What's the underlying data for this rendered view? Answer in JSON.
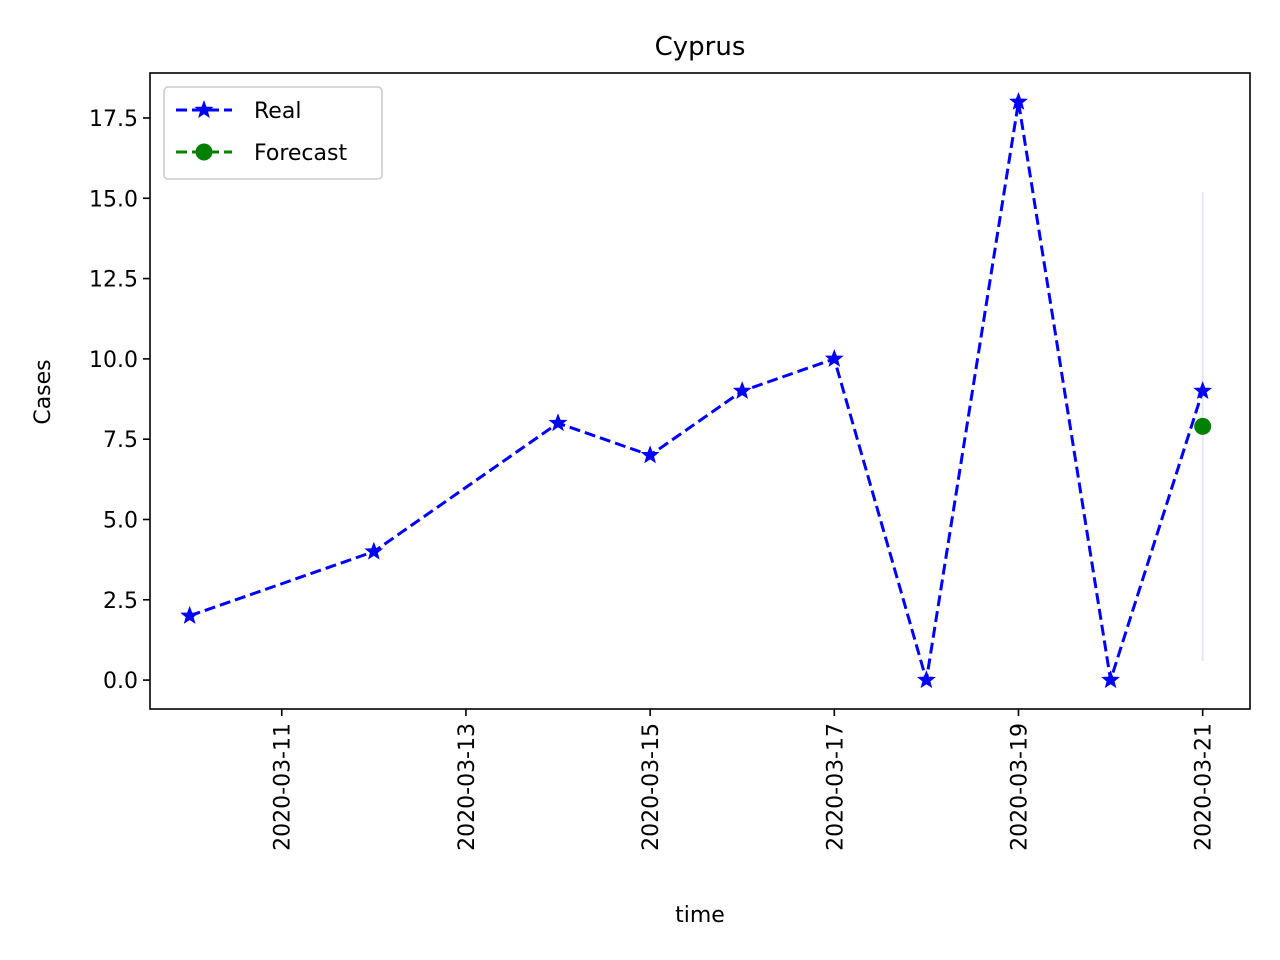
{
  "chart_data": {
    "type": "line",
    "title": "Cyprus",
    "xlabel": "time",
    "ylabel": "Cases",
    "x_axis": "date",
    "xlim": [
      "2020-03-09T13:40",
      "2020-03-21T12:20"
    ],
    "ylim": [
      -0.9,
      18.9
    ],
    "x_ticks": [
      "2020-03-11",
      "2020-03-13",
      "2020-03-15",
      "2020-03-17",
      "2020-03-19",
      "2020-03-21"
    ],
    "y_ticks": [
      "0.0",
      "2.5",
      "5.0",
      "7.5",
      "10.0",
      "12.5",
      "15.0",
      "17.5"
    ],
    "grid": false,
    "legend_position": "top-left",
    "series": [
      {
        "name": "Real",
        "color": "#0000ff",
        "line_style": "dashed",
        "marker": "star",
        "points": [
          {
            "x": "2020-03-10",
            "y": 2
          },
          {
            "x": "2020-03-12",
            "y": 4
          },
          {
            "x": "2020-03-14",
            "y": 8
          },
          {
            "x": "2020-03-15",
            "y": 7
          },
          {
            "x": "2020-03-16",
            "y": 9
          },
          {
            "x": "2020-03-17",
            "y": 10
          },
          {
            "x": "2020-03-18",
            "y": 0
          },
          {
            "x": "2020-03-19",
            "y": 18
          },
          {
            "x": "2020-03-20",
            "y": 0
          },
          {
            "x": "2020-03-21",
            "y": 9
          }
        ]
      },
      {
        "name": "Forecast",
        "color": "#008000",
        "line_style": "dashed",
        "marker": "circle",
        "points": [
          {
            "x": "2020-03-21",
            "y": 7.9
          }
        ]
      }
    ],
    "interval": {
      "x": "2020-03-21",
      "low": 0.6,
      "high": 15.2,
      "color": "#e6e6ff"
    }
  }
}
